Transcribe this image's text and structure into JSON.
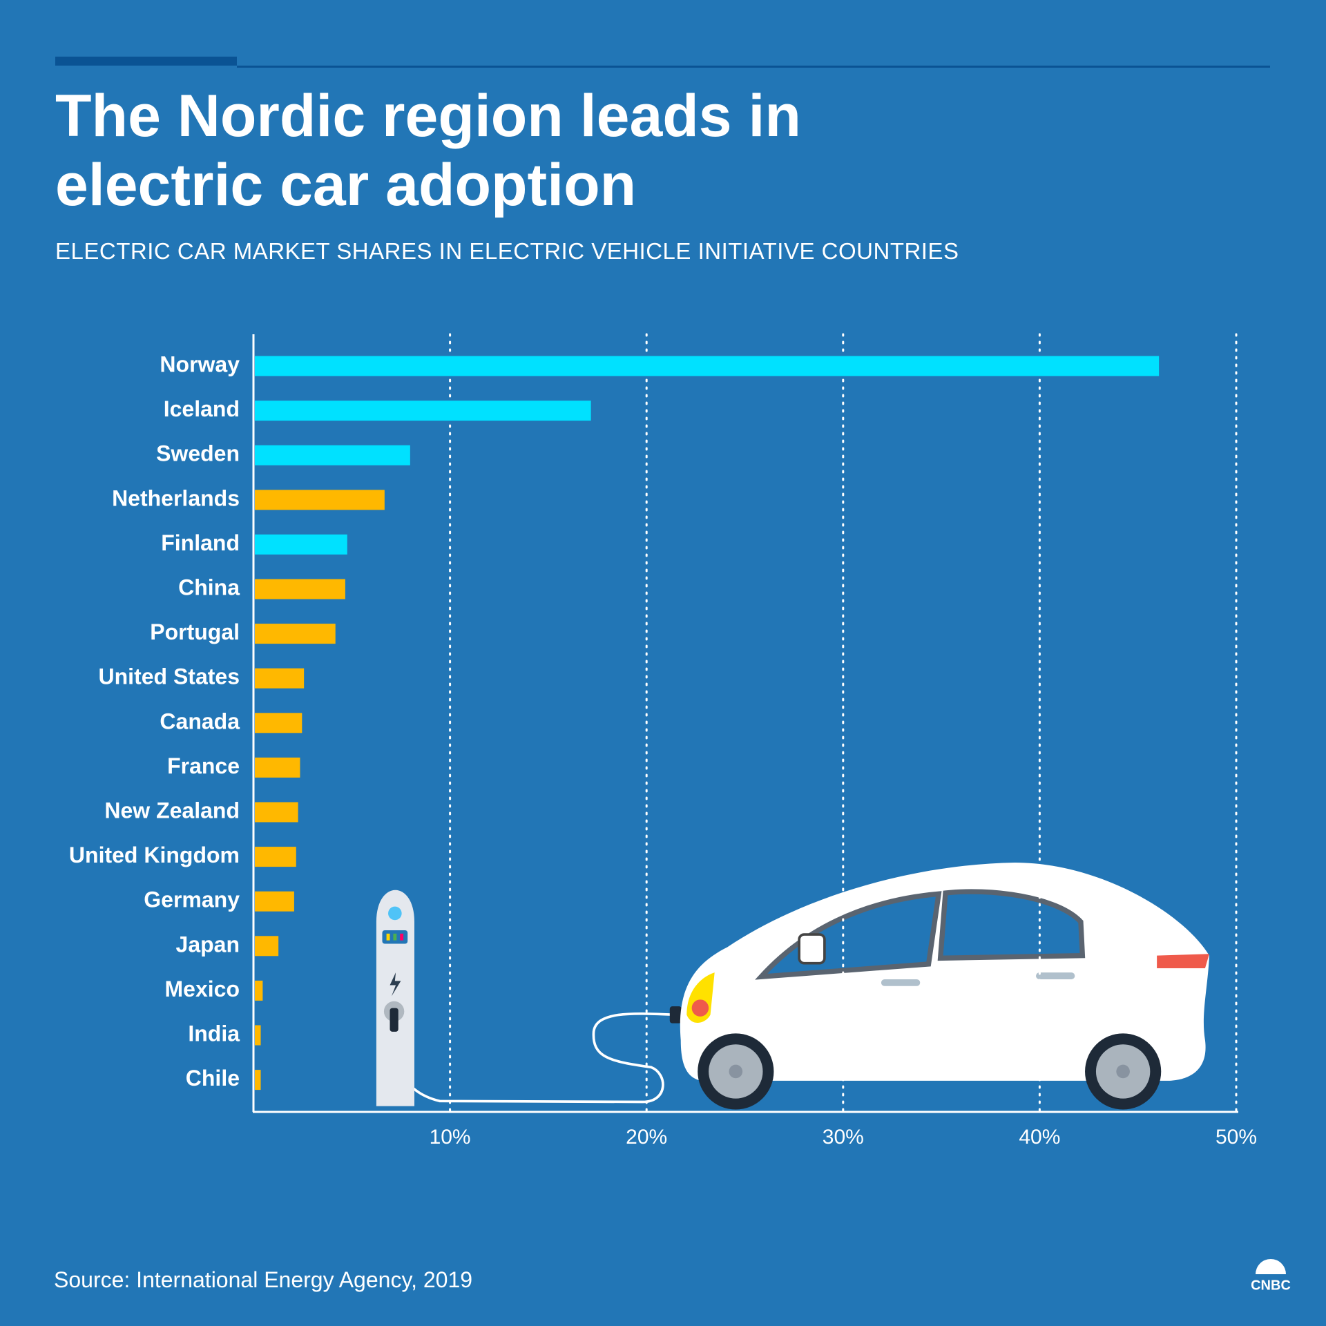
{
  "chart_data": {
    "type": "bar",
    "orientation": "horizontal",
    "title": "The Nordic region leads in electric car adoption",
    "subtitle": "ELECTRIC CAR MARKET SHARES IN ELECTRIC VEHICLE INITIATIVE COUNTRIES",
    "source": "Source: International Energy Agency, 2019",
    "logo": "CNBC",
    "categories": [
      "Norway",
      "Iceland",
      "Sweden",
      "Netherlands",
      "Finland",
      "China",
      "Portugal",
      "United States",
      "Canada",
      "France",
      "New Zealand",
      "United Kingdom",
      "Germany",
      "Japan",
      "Mexico",
      "India",
      "Chile"
    ],
    "values": [
      46.0,
      17.1,
      7.9,
      6.6,
      4.7,
      4.6,
      4.1,
      2.5,
      2.4,
      2.3,
      2.2,
      2.1,
      2.0,
      1.2,
      0.4,
      0.3,
      0.3
    ],
    "colors": [
      "#00e1ff",
      "#00e1ff",
      "#00e1ff",
      "#ffb800",
      "#00e1ff",
      "#ffb800",
      "#ffb800",
      "#ffb800",
      "#ffb800",
      "#ffb800",
      "#ffb800",
      "#ffb800",
      "#ffb800",
      "#ffb800",
      "#ffb800",
      "#ffb800",
      "#ffb800"
    ],
    "xlim": [
      0,
      50
    ],
    "xticks": [
      {
        "value": 10,
        "label": "10%"
      },
      {
        "value": 20,
        "label": "20%"
      },
      {
        "value": 30,
        "label": "30%"
      },
      {
        "value": 40,
        "label": "40%"
      },
      {
        "value": 50,
        "label": "50%"
      }
    ],
    "grid": true
  }
}
